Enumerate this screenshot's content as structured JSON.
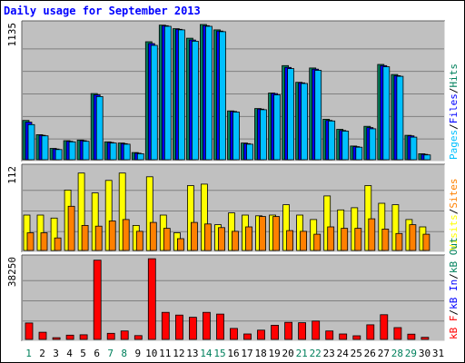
{
  "chart_data": [
    {
      "type": "bar",
      "title": "Daily usage for September 2013",
      "categories": [
        "1",
        "2",
        "3",
        "4",
        "5",
        "6",
        "7",
        "8",
        "9",
        "10",
        "11",
        "12",
        "13",
        "14",
        "15",
        "16",
        "17",
        "18",
        "19",
        "20",
        "21",
        "22",
        "23",
        "24",
        "25",
        "26",
        "27",
        "28",
        "29",
        "30",
        "31"
      ],
      "weekend_days": [
        "1",
        "7",
        "8",
        "14",
        "15",
        "21",
        "22",
        "28",
        "29"
      ],
      "ymax_label": "1135",
      "ylim": [
        0,
        1135
      ],
      "series": [
        {
          "name": "Hits",
          "color": "#00805c",
          "values": [
            330,
            210,
            95,
            160,
            165,
            555,
            150,
            140,
            60,
            990,
            1130,
            1100,
            1020,
            1135,
            1090,
            410,
            140,
            430,
            560,
            790,
            650,
            770,
            340,
            255,
            115,
            280,
            800,
            715,
            205,
            50,
            0
          ]
        },
        {
          "name": "Files",
          "color": "#0000ff",
          "values": [
            315,
            205,
            90,
            155,
            160,
            545,
            145,
            135,
            55,
            975,
            1125,
            1095,
            1005,
            1125,
            1080,
            405,
            135,
            425,
            555,
            775,
            645,
            760,
            330,
            245,
            110,
            270,
            790,
            705,
            200,
            45,
            0
          ]
        },
        {
          "name": "Pages",
          "color": "#00c0ff",
          "values": [
            295,
            200,
            85,
            150,
            155,
            530,
            140,
            130,
            50,
            960,
            1120,
            1090,
            995,
            1120,
            1075,
            400,
            130,
            420,
            545,
            765,
            640,
            750,
            325,
            240,
            105,
            260,
            780,
            700,
            190,
            40,
            0
          ]
        }
      ],
      "legend": [
        "Pages",
        "/",
        "Files",
        "/",
        "Hits"
      ],
      "legend_colors": [
        "#00c0ff",
        "#000000",
        "#0000ff",
        "#000000",
        "#00805c"
      ]
    },
    {
      "type": "bar",
      "ymax_label": "112",
      "ylim": [
        0,
        112
      ],
      "categories": [
        "1",
        "2",
        "3",
        "4",
        "5",
        "6",
        "7",
        "8",
        "9",
        "10",
        "11",
        "12",
        "13",
        "14",
        "15",
        "16",
        "17",
        "18",
        "19",
        "20",
        "21",
        "22",
        "23",
        "24",
        "25",
        "26",
        "27",
        "28",
        "29",
        "30",
        "31"
      ],
      "series": [
        {
          "name": "Visits",
          "color": "#ffff00",
          "values": [
            48,
            48,
            44,
            82,
            105,
            78,
            95,
            105,
            34,
            100,
            48,
            24,
            88,
            90,
            35,
            51,
            48,
            47,
            48,
            62,
            48,
            42,
            74,
            55,
            58,
            88,
            64,
            62,
            42,
            32,
            0
          ]
        },
        {
          "name": "Sites",
          "color": "#ff8000",
          "values": [
            24,
            24,
            17,
            60,
            34,
            33,
            40,
            42,
            26,
            38,
            30,
            16,
            38,
            36,
            31,
            26,
            32,
            46,
            46,
            27,
            26,
            22,
            32,
            30,
            30,
            43,
            29,
            23,
            35,
            22,
            0
          ]
        }
      ],
      "legend": [
        "Visits",
        "/",
        "Sites"
      ],
      "legend_colors": [
        "#ffff00",
        "#000000",
        "#ff8000"
      ]
    },
    {
      "type": "bar",
      "ymax_label": "38250",
      "ylim": [
        0,
        38250
      ],
      "categories": [
        "1",
        "2",
        "3",
        "4",
        "5",
        "6",
        "7",
        "8",
        "9",
        "10",
        "11",
        "12",
        "13",
        "14",
        "15",
        "16",
        "17",
        "18",
        "19",
        "20",
        "21",
        "22",
        "23",
        "24",
        "25",
        "26",
        "27",
        "28",
        "29",
        "30",
        "31"
      ],
      "series": [
        {
          "name": "KBytes F",
          "color": "#ff0000",
          "values": [
            7800,
            3400,
            800,
            2000,
            2200,
            37500,
            2900,
            4000,
            1800,
            38200,
            12800,
            11500,
            10500,
            12800,
            12000,
            5200,
            2600,
            4400,
            6700,
            8100,
            7900,
            8700,
            4000,
            2600,
            1700,
            6900,
            11700,
            5600,
            2500,
            1000,
            0
          ]
        }
      ],
      "legend": [
        "KBytes F",
        "/",
        "KBytes In",
        "/",
        "KBytes Out"
      ],
      "legend_text": [
        "kB F",
        "/",
        "kB In",
        "/",
        "kB Out"
      ],
      "legend_colors": [
        "#ff0000",
        "#000000",
        "#0000ff",
        "#000000",
        "#00805c"
      ]
    }
  ]
}
